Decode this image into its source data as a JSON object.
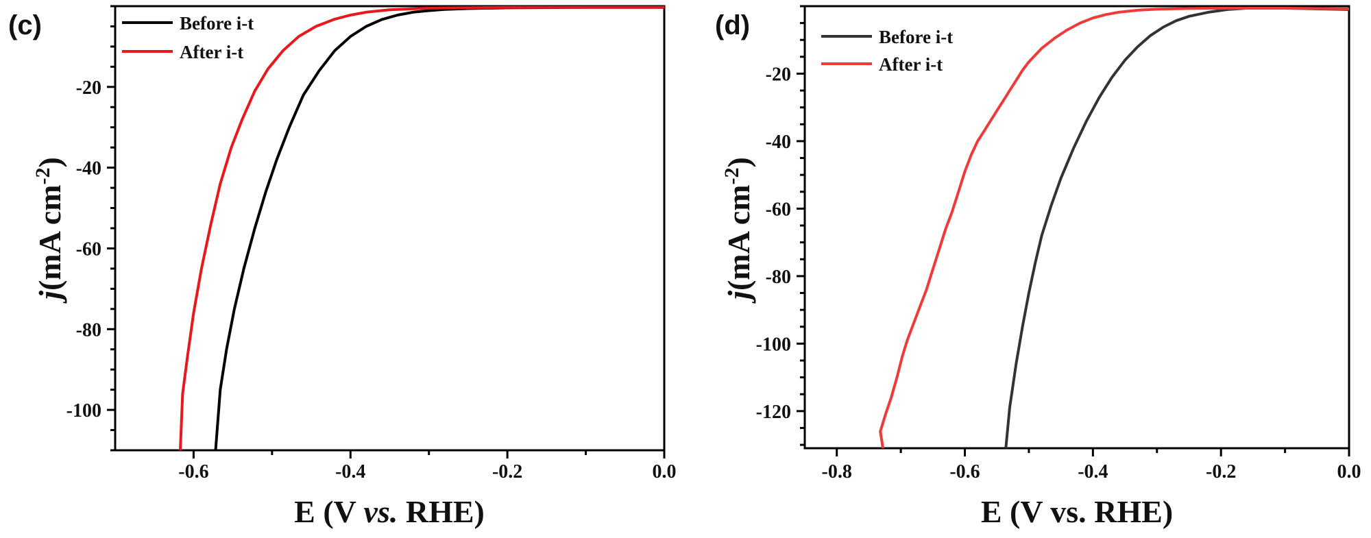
{
  "chart_data": [
    {
      "panel": "(c)",
      "type": "line",
      "title": "",
      "xlabel_parts": [
        "E (V ",
        "vs.",
        " RHE)"
      ],
      "ylabel_parts": [
        "j",
        "(mA cm",
        "-2",
        ")"
      ],
      "xlim": [
        -0.7,
        0.0
      ],
      "ylim": [
        -110,
        0
      ],
      "xticks": [
        -0.6,
        -0.4,
        -0.2,
        0.0
      ],
      "xtick_labels": [
        "-0.6",
        "-0.4",
        "-0.2",
        "0.0"
      ],
      "yticks": [
        -20,
        -40,
        -60,
        -80,
        -100
      ],
      "ytick_labels": [
        "-20",
        "-40",
        "-60",
        "-80",
        "-100"
      ],
      "legend_position": "top-left",
      "series": [
        {
          "name": "Before i-t",
          "color": "#000000",
          "x": [
            -0.572,
            -0.566,
            -0.558,
            -0.548,
            -0.536,
            -0.522,
            -0.508,
            -0.494,
            -0.478,
            -0.46,
            -0.44,
            -0.42,
            -0.4,
            -0.38,
            -0.36,
            -0.34,
            -0.32,
            -0.3,
            -0.28,
            -0.25,
            -0.2,
            -0.1,
            0.0
          ],
          "y": [
            -110,
            -95,
            -85,
            -75,
            -65,
            -55,
            -46,
            -38,
            -30,
            -22,
            -16,
            -11,
            -7.5,
            -5,
            -3.3,
            -2.2,
            -1.5,
            -1.1,
            -0.8,
            -0.6,
            -0.4,
            -0.3,
            -0.3
          ]
        },
        {
          "name": "After i-t",
          "color": "#e8191c",
          "x": [
            -0.617,
            -0.614,
            -0.608,
            -0.6,
            -0.59,
            -0.578,
            -0.566,
            -0.552,
            -0.538,
            -0.522,
            -0.505,
            -0.486,
            -0.466,
            -0.444,
            -0.42,
            -0.4,
            -0.38,
            -0.35,
            -0.3,
            -0.2,
            -0.1,
            0.0
          ],
          "y": [
            -110,
            -96,
            -87,
            -76,
            -65,
            -54,
            -44,
            -35,
            -28,
            -21,
            -15.5,
            -11,
            -7.5,
            -5,
            -3.2,
            -2.2,
            -1.5,
            -0.9,
            -0.5,
            -0.3,
            -0.3,
            -0.3
          ]
        }
      ]
    },
    {
      "panel": "(d)",
      "type": "line",
      "title": "",
      "xlabel_parts": [
        "E (V vs. RHE)"
      ],
      "ylabel_parts": [
        "j",
        "(mA cm",
        "-2",
        ")"
      ],
      "xlim": [
        -0.85,
        0.0
      ],
      "ylim": [
        -131,
        0
      ],
      "xticks": [
        -0.8,
        -0.6,
        -0.4,
        -0.2,
        0.0
      ],
      "xtick_labels": [
        "-0.8",
        "-0.6",
        "-0.4",
        "-0.2",
        "0.0"
      ],
      "yticks": [
        -20,
        -40,
        -60,
        -80,
        -100,
        -120
      ],
      "ytick_labels": [
        "-20",
        "-40",
        "-60",
        "-80",
        "-100",
        "-120"
      ],
      "legend_position": "top-left",
      "series": [
        {
          "name": "Before i-t",
          "color": "#333333",
          "x": [
            -0.536,
            -0.53,
            -0.52,
            -0.51,
            -0.5,
            -0.49,
            -0.48,
            -0.465,
            -0.45,
            -0.43,
            -0.41,
            -0.39,
            -0.37,
            -0.35,
            -0.33,
            -0.31,
            -0.29,
            -0.27,
            -0.25,
            -0.22,
            -0.19,
            -0.16,
            -0.1,
            0.0
          ],
          "y": [
            -131,
            -119,
            -106,
            -95,
            -85,
            -76,
            -68,
            -59,
            -51,
            -42,
            -34,
            -27,
            -21,
            -16,
            -12,
            -8.7,
            -6.2,
            -4.3,
            -3,
            -1.8,
            -1,
            -0.6,
            -0.6,
            -1
          ]
        },
        {
          "name": "After i-t",
          "color": "#f03a3a",
          "x": [
            -0.728,
            -0.732,
            -0.724,
            -0.715,
            -0.706,
            -0.698,
            -0.69,
            -0.68,
            -0.67,
            -0.66,
            -0.65,
            -0.64,
            -0.63,
            -0.62,
            -0.61,
            -0.6,
            -0.59,
            -0.58,
            -0.57,
            -0.56,
            -0.55,
            -0.54,
            -0.53,
            -0.52,
            -0.51,
            -0.5,
            -0.48,
            -0.46,
            -0.44,
            -0.42,
            -0.4,
            -0.38,
            -0.36,
            -0.33,
            -0.3,
            -0.25,
            -0.2,
            -0.1,
            0.0
          ],
          "y": [
            -131,
            -126,
            -121,
            -116,
            -110,
            -104,
            -99,
            -94,
            -89,
            -84,
            -78,
            -72,
            -66,
            -61,
            -55,
            -49,
            -44,
            -40,
            -37,
            -34,
            -31,
            -28,
            -25,
            -22,
            -19,
            -16.5,
            -12.5,
            -9.5,
            -7,
            -5,
            -3.5,
            -2.5,
            -1.8,
            -1.2,
            -0.9,
            -0.7,
            -0.6,
            -0.6,
            -0.8
          ]
        }
      ]
    }
  ]
}
